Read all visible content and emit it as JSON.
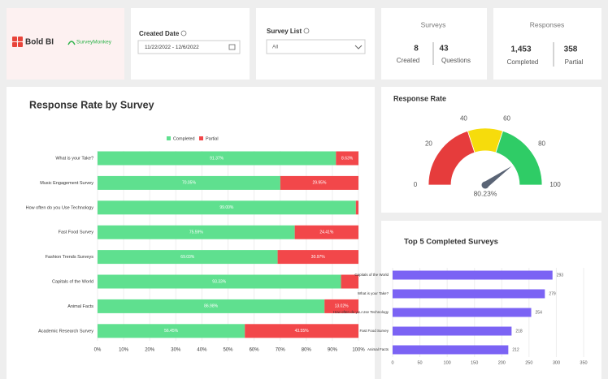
{
  "header": {
    "logo": "Bold BI",
    "partner": "SurveyMonkey"
  },
  "filters": {
    "created_date": {
      "label": "Created Date",
      "value": "11/22/2022 - 12/6/2022"
    },
    "survey_list": {
      "label": "Survey List",
      "value": "All"
    }
  },
  "kpis": {
    "surveys": {
      "title": "Surveys",
      "items": [
        {
          "value": "8",
          "label": "Created"
        },
        {
          "value": "43",
          "label": "Questions"
        }
      ]
    },
    "responses": {
      "title": "Responses",
      "items": [
        {
          "value": "1,453",
          "label": "Completed"
        },
        {
          "value": "358",
          "label": "Partial"
        }
      ]
    }
  },
  "chart_data": [
    {
      "type": "stacked-bar",
      "orientation": "horizontal",
      "title": "Response Rate by Survey",
      "categories": [
        "What is your Take?",
        "Music Engagement Survey",
        "How often do you Use Technology",
        "Fast Food Survey",
        "Fashion Trends Surveys",
        "Capitals of the World",
        "Animal Facts",
        "Academic Research Survey"
      ],
      "series": [
        {
          "name": "Completed",
          "color": "#5fe08f",
          "values": [
            91.37,
            70.05,
            99.0,
            75.59,
            69.03,
            93.33,
            86.98,
            56.45
          ],
          "value_labels": [
            "91.37%",
            "70.05%",
            "99.00%",
            "75.59%",
            "69.03%",
            "93.33%",
            "86.98%",
            "56.45%"
          ]
        },
        {
          "name": "Partial",
          "color": "#f2474a",
          "values": [
            8.63,
            29.95,
            1.0,
            24.41,
            30.97,
            6.67,
            13.02,
            43.55
          ],
          "value_labels": [
            "8.63%",
            "29.95%",
            null,
            "24.41%",
            "30.97%",
            null,
            "13.02%",
            "43.55%"
          ]
        }
      ],
      "xlim": [
        0,
        100
      ],
      "xticks": [
        {
          "value": 0,
          "label": "0%"
        },
        {
          "value": 10,
          "label": "10%"
        },
        {
          "value": 20,
          "label": "20%"
        },
        {
          "value": 30,
          "label": "30%"
        },
        {
          "value": 40,
          "label": "40%"
        },
        {
          "value": 50,
          "label": "50%"
        },
        {
          "value": 60,
          "label": "60%"
        },
        {
          "value": 70,
          "label": "70%"
        },
        {
          "value": 80,
          "label": "80%"
        },
        {
          "value": 90,
          "label": "90%"
        },
        {
          "value": 100,
          "label": "100%"
        }
      ],
      "legend": "top",
      "grid": true
    },
    {
      "type": "gauge",
      "title": "Response Rate",
      "value": 80.23,
      "value_label": "80.23%",
      "lim": [
        0,
        100
      ],
      "ticks": [
        0,
        20,
        40,
        60,
        80,
        100
      ],
      "bands": [
        {
          "from": 0,
          "to": 40,
          "color": "#e63c3c"
        },
        {
          "from": 40,
          "to": 60,
          "color": "#f6dc0c"
        },
        {
          "from": 60,
          "to": 100,
          "color": "#2fcc66"
        }
      ]
    },
    {
      "type": "bar",
      "orientation": "horizontal",
      "title": "Top 5 Completed Surveys",
      "categories": [
        "Capitals of the World",
        "What is your Take?",
        "How often do you Use Technology",
        "Fast Food Survey",
        "Animal Facts"
      ],
      "values": [
        293,
        279,
        254,
        218,
        212
      ],
      "color": "#7b63f4",
      "xlim": [
        0,
        350
      ],
      "xticks": [
        0,
        50,
        100,
        150,
        200,
        250,
        300,
        350
      ],
      "grid": true
    }
  ]
}
